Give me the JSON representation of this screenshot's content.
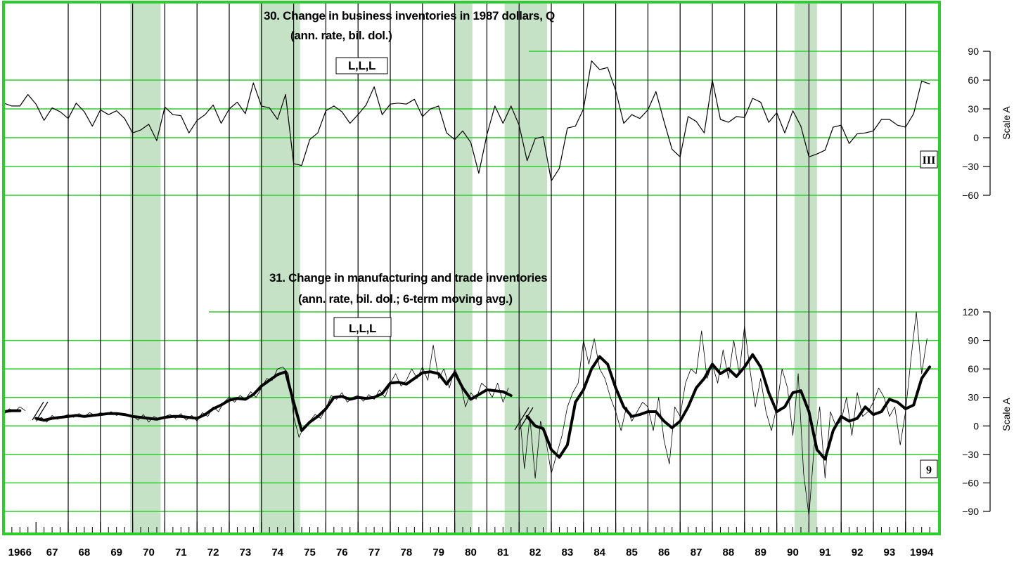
{
  "x_axis": {
    "xlim": [
      1966,
      1995
    ],
    "xticks": [
      1966,
      {
        "value": 1967,
        "label": "67"
      },
      {
        "value": 1968,
        "label": "68"
      },
      {
        "value": 1969,
        "label": "69"
      },
      {
        "value": 1970,
        "label": "70"
      },
      {
        "value": 1971,
        "label": "71"
      },
      {
        "value": 1972,
        "label": "72"
      },
      {
        "value": 1973,
        "label": "73"
      },
      {
        "value": 1974,
        "label": "74"
      },
      {
        "value": 1975,
        "label": "75"
      },
      {
        "value": 1976,
        "label": "76"
      },
      {
        "value": 1977,
        "label": "77"
      },
      {
        "value": 1978,
        "label": "78"
      },
      {
        "value": 1979,
        "label": "79"
      },
      {
        "value": 1980,
        "label": "80"
      },
      {
        "value": 1981,
        "label": "81"
      },
      {
        "value": 1982,
        "label": "82"
      },
      {
        "value": 1983,
        "label": "83"
      },
      {
        "value": 1984,
        "label": "84"
      },
      {
        "value": 1985,
        "label": "85"
      },
      {
        "value": 1986,
        "label": "86"
      },
      {
        "value": 1987,
        "label": "87"
      },
      {
        "value": 1988,
        "label": "88"
      },
      {
        "value": 1989,
        "label": "89"
      },
      {
        "value": 1990,
        "label": "90"
      },
      {
        "value": 1991,
        "label": "91"
      },
      {
        "value": 1992,
        "label": "92"
      },
      {
        "value": 1993,
        "label": "93"
      },
      1994
    ]
  },
  "recessions": [
    [
      1969.92,
      1970.87
    ],
    [
      1973.92,
      1975.2
    ],
    [
      1980.0,
      1980.55
    ],
    [
      1981.55,
      1982.87
    ],
    [
      1990.55,
      1991.25
    ]
  ],
  "recession_color": "#c6e2c6",
  "grid_color": "#2ecc2e",
  "chart_data": [
    {
      "type": "line",
      "title": "30. Change in business inventories in 1987 dollars, Q",
      "subtitle": "(ann. rate, bil. dol.)",
      "code": "L,L,L",
      "note": "III",
      "ylabel": "Scale A",
      "ylim": [
        -60,
        90
      ],
      "yticks": [
        -60,
        -30,
        0,
        30,
        60,
        90
      ],
      "grid": true,
      "series": [
        {
          "color": "#000000",
          "width": 1.2,
          "x_start": 1966,
          "periods_per_year": 4,
          "values": [
            36,
            33,
            33,
            45,
            35,
            18,
            31,
            27,
            20,
            36,
            27,
            12,
            29,
            24,
            28,
            20,
            5,
            8,
            14,
            -3,
            32,
            24,
            23,
            5,
            18,
            24,
            34,
            15,
            30,
            37,
            25,
            57,
            33,
            31,
            19,
            45,
            -27,
            -29,
            -2,
            5,
            28,
            33,
            27,
            15,
            24,
            34,
            53,
            24,
            35,
            36,
            35,
            40,
            22,
            30,
            33,
            5,
            -2,
            7,
            -5,
            -37,
            3,
            33,
            15,
            33,
            13,
            -24,
            -1,
            1,
            -45,
            -32,
            10,
            12,
            30,
            80,
            71,
            73,
            49,
            15,
            24,
            20,
            29,
            48,
            17,
            -12,
            -20,
            22,
            17,
            5,
            60,
            19,
            16,
            22,
            21,
            41,
            37,
            16,
            26,
            5,
            28,
            12,
            -20,
            -17,
            -13,
            11,
            13,
            -6,
            4,
            5,
            7,
            19,
            19,
            13,
            11,
            25,
            59,
            56
          ]
        }
      ]
    },
    {
      "type": "line",
      "title": "31. Change in manufacturing and trade inventories",
      "subtitle": "(ann. rate, bil. dol.; 6-term moving avg.)",
      "code": "L,L,L",
      "note": "9",
      "ylabel": "Scale A",
      "ylim": [
        -90,
        120
      ],
      "yticks": [
        -90,
        -60,
        -30,
        0,
        30,
        60,
        90,
        120
      ],
      "grid": true,
      "series": [
        {
          "color": "#000000",
          "width": 0.8,
          "x_start": 1966,
          "periods_per_year": 6,
          "values": [
            12,
            18,
            15,
            20,
            16,
            null,
            5,
            9,
            4,
            11,
            7,
            10,
            12,
            9,
            13,
            10,
            14,
            11,
            14,
            12,
            15,
            11,
            13,
            12,
            11,
            6,
            12,
            4,
            10,
            7,
            10,
            12,
            8,
            13,
            6,
            11,
            5,
            14,
            10,
            20,
            15,
            25,
            30,
            25,
            32,
            28,
            36,
            30,
            40,
            50,
            48,
            60,
            62,
            55,
            10,
            -12,
            0,
            5,
            12,
            8,
            18,
            32,
            28,
            35,
            25,
            30,
            32,
            26,
            33,
            28,
            38,
            30,
            45,
            55,
            42,
            48,
            60,
            50,
            62,
            48,
            85,
            50,
            60,
            40,
            60,
            48,
            20,
            35,
            28,
            45,
            40,
            30,
            45,
            25,
            40,
            null,
            20,
            -45,
            10,
            -55,
            5,
            -15,
            -50,
            -30,
            -10,
            20,
            35,
            45,
            90,
            65,
            92,
            60,
            50,
            30,
            15,
            -5,
            20,
            5,
            15,
            25,
            20,
            -5,
            30,
            -15,
            -40,
            20,
            10,
            45,
            60,
            55,
            100,
            50,
            65,
            45,
            80,
            50,
            90,
            55,
            105,
            60,
            20,
            50,
            15,
            -5,
            20,
            60,
            40,
            -10,
            55,
            -50,
            -95,
            -20,
            20,
            -55,
            15,
            0,
            5,
            30,
            -10,
            35,
            10,
            15,
            25,
            40,
            30,
            10,
            20,
            -20,
            15,
            70,
            120,
            55,
            92
          ]
        },
        {
          "color": "#000000",
          "width": 4,
          "x_start": 1966,
          "periods_per_year": 4,
          "values": [
            15,
            16,
            16,
            null,
            8,
            6,
            8,
            9,
            10,
            11,
            10,
            11,
            12,
            13,
            13,
            12,
            10,
            9,
            8,
            7,
            9,
            10,
            10,
            9,
            8,
            12,
            18,
            22,
            27,
            29,
            28,
            33,
            42,
            48,
            54,
            57,
            25,
            -5,
            4,
            10,
            18,
            30,
            31,
            28,
            30,
            29,
            30,
            34,
            45,
            46,
            44,
            50,
            56,
            57,
            55,
            44,
            56,
            40,
            28,
            33,
            38,
            37,
            36,
            32,
            null,
            10,
            0,
            -3,
            -25,
            -33,
            -20,
            25,
            38,
            60,
            73,
            65,
            40,
            20,
            10,
            12,
            15,
            15,
            5,
            -2,
            5,
            20,
            40,
            50,
            65,
            55,
            60,
            52,
            62,
            75,
            62,
            35,
            15,
            20,
            35,
            37,
            15,
            -25,
            -35,
            -5,
            10,
            5,
            8,
            20,
            12,
            15,
            28,
            25,
            18,
            22,
            50,
            62
          ]
        }
      ]
    }
  ]
}
